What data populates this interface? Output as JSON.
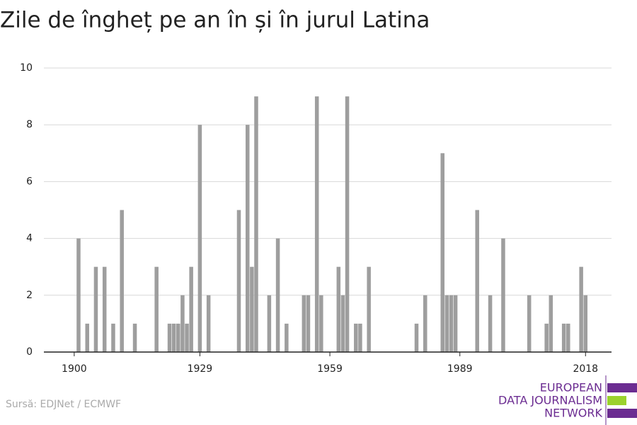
{
  "chart_data": {
    "type": "bar",
    "title": "Zile de îngheț pe an în și în jurul Latina",
    "source": "Sursă: EDJNet / ECMWF",
    "logo": [
      "EUROPEAN",
      "DATA JOURNALISM",
      "NETWORK"
    ],
    "color": "#9e9e9e",
    "x": [
      1901,
      1903,
      1905,
      1907,
      1909,
      1911,
      1914,
      1919,
      1922,
      1923,
      1924,
      1925,
      1926,
      1927,
      1929,
      1931,
      1938,
      1940,
      1941,
      1942,
      1945,
      1947,
      1949,
      1953,
      1954,
      1956,
      1957,
      1961,
      1962,
      1963,
      1965,
      1966,
      1968,
      1979,
      1981,
      1985,
      1986,
      1987,
      1988,
      1993,
      1996,
      1999,
      2005,
      2009,
      2010,
      2013,
      2014,
      2017,
      2018
    ],
    "values": [
      4,
      1,
      3,
      3,
      1,
      5,
      1,
      3,
      1,
      1,
      1,
      2,
      1,
      3,
      8,
      2,
      5,
      8,
      3,
      9,
      2,
      4,
      1,
      2,
      2,
      9,
      2,
      3,
      2,
      9,
      1,
      1,
      3,
      1,
      2,
      7,
      2,
      2,
      2,
      5,
      2,
      4,
      2,
      1,
      2,
      1,
      1,
      3,
      2
    ],
    "xlim": [
      1893,
      2024
    ],
    "xticks": [
      1900,
      1929,
      1959,
      1989,
      2018
    ],
    "ylim": [
      0,
      10
    ],
    "yticks": [
      0,
      2,
      4,
      6,
      8,
      10
    ],
    "grid": true
  }
}
